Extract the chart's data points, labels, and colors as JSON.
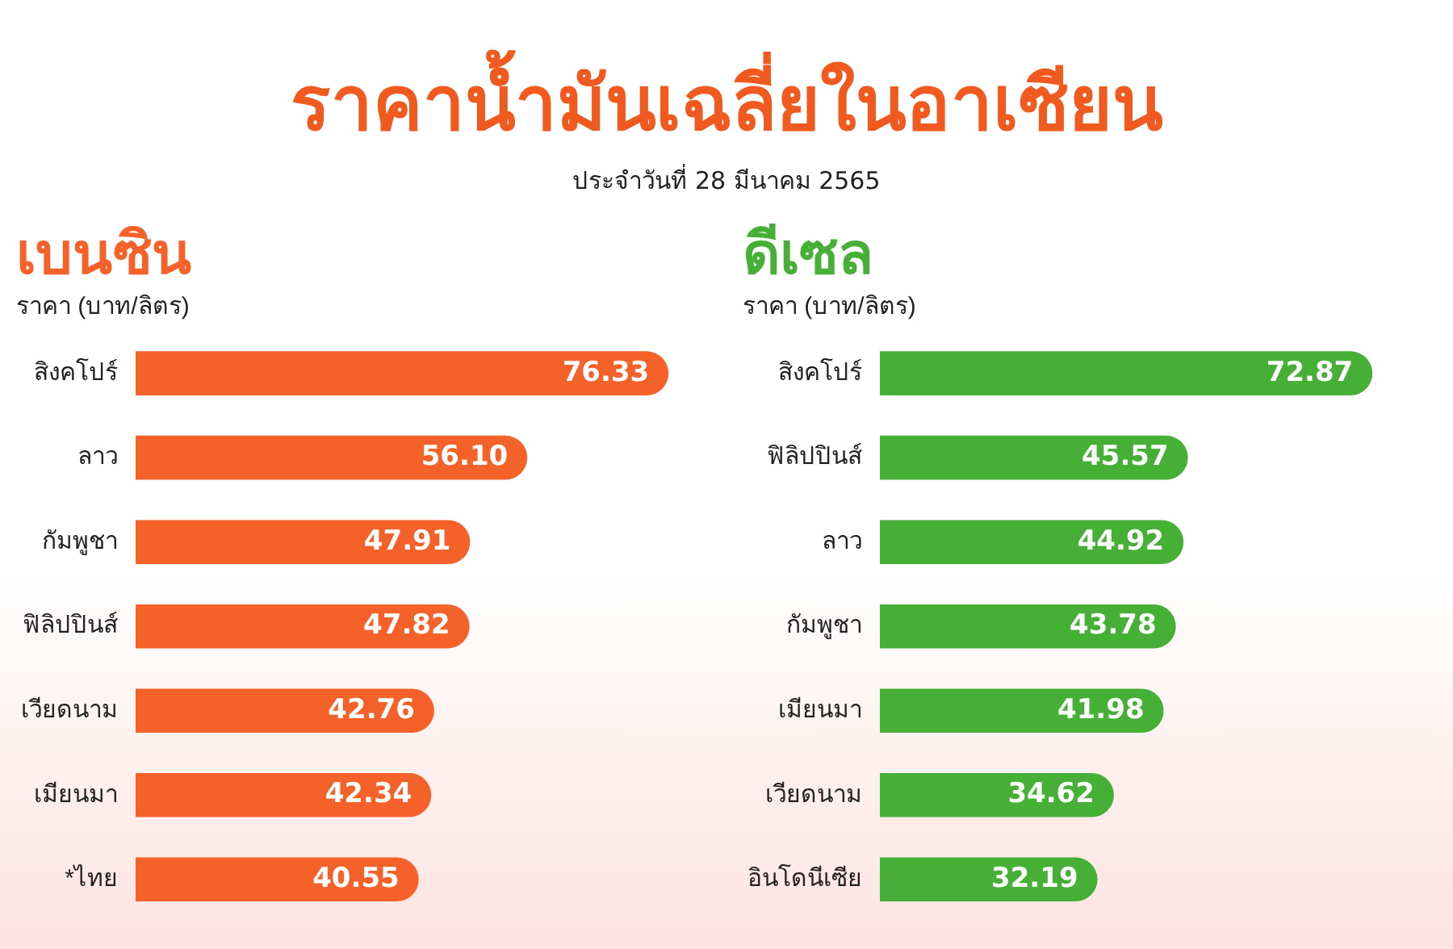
{
  "chart_data": [
    {
      "type": "other",
      "title": "ราคาน้ำมันเฉลี่ยในอาเซียน",
      "subtitle": "ประจำวันที่ 28 มีนาคม 2565"
    },
    {
      "type": "bar",
      "orientation": "horizontal",
      "title": "เบนซิน",
      "subtitle": "ราคา (บาท/ลิตร)",
      "categories": [
        "สิงคโปร์",
        "ลาว",
        "กัมพูชา",
        "ฟิลิปปินส์",
        "เวียดนาม",
        "เมียนมา",
        "*ไทย"
      ],
      "values": [
        76.33,
        56.1,
        47.91,
        47.82,
        42.76,
        42.34,
        40.55
      ],
      "value_labels": [
        "76.33",
        "56.10",
        "47.91",
        "47.82",
        "42.76",
        "42.34",
        "40.55"
      ],
      "color": "#f4622a",
      "tick_labels": "y",
      "grid": false,
      "legend": false
    },
    {
      "type": "bar",
      "orientation": "horizontal",
      "title": "ดีเซล",
      "subtitle": "ราคา (บาท/ลิตร)",
      "categories": [
        "สิงคโปร์",
        "ฟิลิปปินส์",
        "ลาว",
        "กัมพูชา",
        "เมียนมา",
        "เวียดนาม",
        "อินโดนีเซีย"
      ],
      "values": [
        72.87,
        45.57,
        44.92,
        43.78,
        41.98,
        34.62,
        32.19
      ],
      "value_labels": [
        "72.87",
        "45.57",
        "44.92",
        "43.78",
        "41.98",
        "34.62",
        "32.19"
      ],
      "color": "#45b035",
      "tick_labels": "y",
      "grid": false,
      "legend": false
    }
  ]
}
